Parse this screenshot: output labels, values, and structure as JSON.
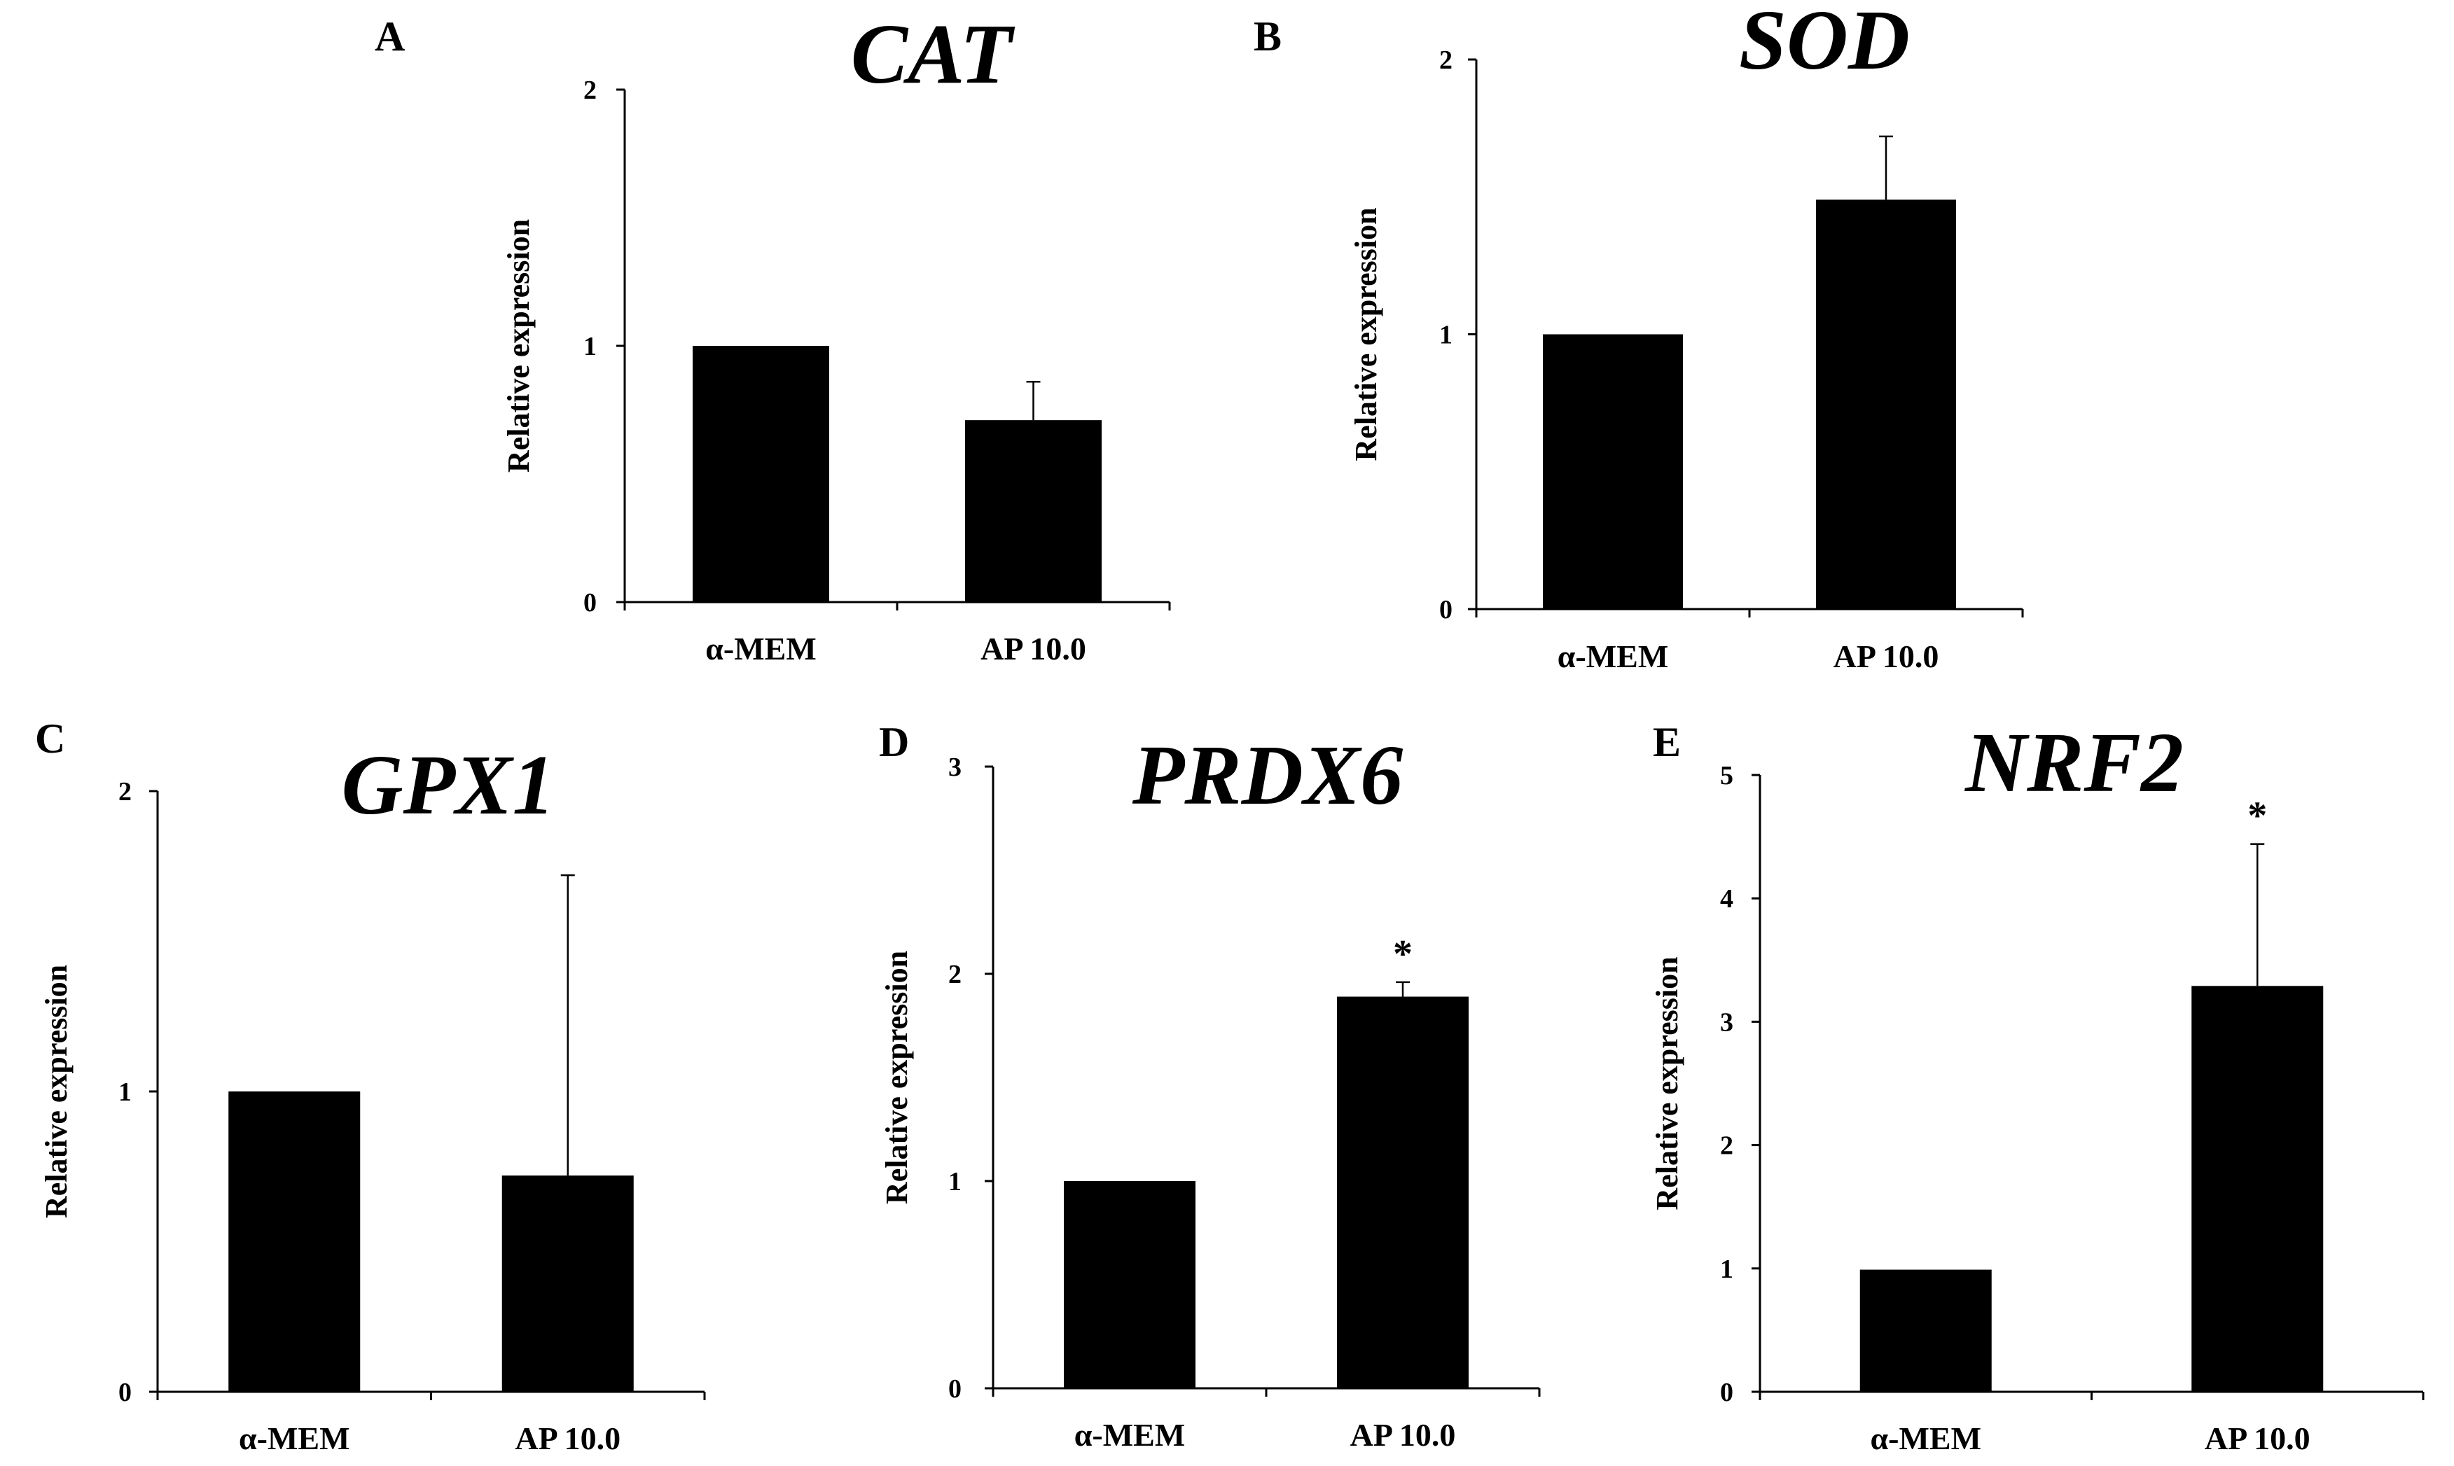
{
  "chart_data": [
    {
      "type": "bar",
      "panel": "A",
      "title": "CAT",
      "ylabel": "Relative expression",
      "categories": [
        "α-MEM",
        "AP 10.0"
      ],
      "values": [
        1.0,
        0.71
      ],
      "errors": [
        0,
        0.15
      ],
      "significance": [
        "",
        ""
      ],
      "ylim": [
        0,
        2
      ],
      "yticks": [
        0,
        1,
        2
      ]
    },
    {
      "type": "bar",
      "panel": "B",
      "title": "SOD",
      "ylabel": "Relative expression",
      "categories": [
        "α-MEM",
        "AP 10.0"
      ],
      "values": [
        1.0,
        1.49
      ],
      "errors": [
        0,
        0.23
      ],
      "significance": [
        "",
        ""
      ],
      "ylim": [
        0,
        2
      ],
      "yticks": [
        0,
        1,
        2
      ]
    },
    {
      "type": "bar",
      "panel": "C",
      "title": "GPX1",
      "ylabel": "Relative expression",
      "categories": [
        "α-MEM",
        "AP 10.0"
      ],
      "values": [
        1.0,
        0.72
      ],
      "errors": [
        0,
        1.0
      ],
      "significance": [
        "",
        ""
      ],
      "ylim": [
        0,
        2
      ],
      "yticks": [
        0,
        1,
        2
      ]
    },
    {
      "type": "bar",
      "panel": "D",
      "title": "PRDX6",
      "ylabel": "Relative expression",
      "categories": [
        "α-MEM",
        "AP 10.0"
      ],
      "values": [
        1.0,
        1.89
      ],
      "errors": [
        0,
        0.07
      ],
      "significance": [
        "",
        "*"
      ],
      "ylim": [
        0,
        3
      ],
      "yticks": [
        0,
        1,
        2,
        3
      ]
    },
    {
      "type": "bar",
      "panel": "E",
      "title": "NRF2",
      "ylabel": "Relative expression",
      "categories": [
        "α-MEM",
        "AP 10.0"
      ],
      "values": [
        0.99,
        3.29
      ],
      "errors": [
        0,
        1.15
      ],
      "significance": [
        "",
        "*"
      ],
      "ylim": [
        0,
        5
      ],
      "yticks": [
        0,
        1,
        2,
        3,
        4,
        5
      ]
    }
  ]
}
